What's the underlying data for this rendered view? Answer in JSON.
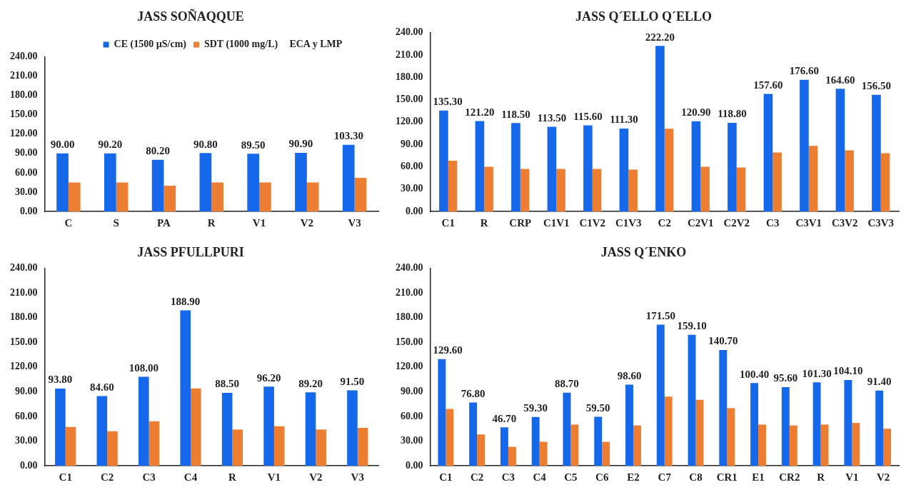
{
  "chart_data": [
    {
      "type": "bar",
      "title": "JASS SOÑAQQUE",
      "categories": [
        "C",
        "S",
        "PA",
        "R",
        "V1",
        "V2",
        "V3"
      ],
      "series": [
        {
          "name": "CE (1500 µS/cm)",
          "color": "#1668ea",
          "values": [
            90.0,
            90.2,
            80.2,
            90.8,
            89.5,
            90.9,
            103.3
          ],
          "value_labels": [
            "90.00",
            "90.20",
            "80.20",
            "90.80",
            "89.50",
            "90.90",
            "103.30"
          ]
        },
        {
          "name": "SDT (1000 mg/L)",
          "color": "#ed7d31",
          "values": [
            45,
            45,
            40,
            45,
            45,
            45,
            52
          ]
        }
      ],
      "annotations": [
        "ECA y LMP"
      ],
      "legend": "top",
      "grid": false,
      "ylim": [
        0,
        240
      ],
      "yticks": [
        {
          "value": 0,
          "label": "0.00"
        },
        {
          "value": 30,
          "label": "30.00"
        },
        {
          "value": 60,
          "label": "60.00"
        },
        {
          "value": 90,
          "label": "90.00"
        },
        {
          "value": 120,
          "label": "120.00"
        },
        {
          "value": 150,
          "label": "150.00"
        },
        {
          "value": 180,
          "label": "180.00"
        },
        {
          "value": 210,
          "label": "210.00"
        },
        {
          "value": 240,
          "label": "240.00"
        }
      ]
    },
    {
      "type": "bar",
      "title": "JASS Q´ELLO Q´ELLO",
      "categories": [
        "C1",
        "R",
        "CRP",
        "C1V1",
        "C1V2",
        "C1V3",
        "C2",
        "C2V1",
        "C2V2",
        "C3",
        "C3V1",
        "C3V2",
        "C3V3"
      ],
      "series": [
        {
          "color": "#1668ea",
          "values": [
            135.3,
            121.2,
            118.5,
            113.5,
            115.6,
            111.3,
            222.2,
            120.9,
            118.8,
            157.6,
            176.6,
            164.6,
            156.5
          ],
          "value_labels": [
            "135.30",
            "121.20",
            "118.50",
            "113.50",
            "115.60",
            "111.30",
            "222.20",
            "120.90",
            "118.80",
            "157.60",
            "176.60",
            "164.60",
            "156.50"
          ]
        },
        {
          "color": "#ed7d31",
          "values": [
            68,
            60,
            57,
            57,
            57,
            56,
            111,
            60,
            59,
            79,
            88,
            82,
            78
          ]
        }
      ],
      "grid": false,
      "ylim": [
        0,
        240
      ],
      "yticks": [
        {
          "value": 0,
          "label": "0.00"
        },
        {
          "value": 30,
          "label": "30.00"
        },
        {
          "value": 60,
          "label": "60.00"
        },
        {
          "value": 90,
          "label": "90.00"
        },
        {
          "value": 120,
          "label": "120.00"
        },
        {
          "value": 150,
          "label": "150.00"
        },
        {
          "value": 180,
          "label": "180.00"
        },
        {
          "value": 210,
          "label": "210.00"
        },
        {
          "value": 240,
          "label": "240.00"
        }
      ]
    },
    {
      "type": "bar",
      "title": "JASS PFULLPURI",
      "categories": [
        "C1",
        "C2",
        "C3",
        "C4",
        "R",
        "V1",
        "V2",
        "V3"
      ],
      "series": [
        {
          "color": "#1668ea",
          "values": [
            93.8,
            84.6,
            108.0,
            188.9,
            88.5,
            96.2,
            89.2,
            91.5
          ],
          "value_labels": [
            "93.80",
            "84.60",
            "108.00",
            "188.90",
            "88.50",
            "96.20",
            "89.20",
            "91.50"
          ]
        },
        {
          "color": "#ed7d31",
          "values": [
            47,
            42,
            54,
            94,
            44,
            48,
            44,
            46
          ]
        }
      ],
      "grid": false,
      "ylim": [
        0,
        240
      ],
      "yticks": [
        {
          "value": 0,
          "label": "0.00"
        },
        {
          "value": 30,
          "label": "30.00"
        },
        {
          "value": 60,
          "label": "60.00"
        },
        {
          "value": 90,
          "label": "90.00"
        },
        {
          "value": 120,
          "label": "120.00"
        },
        {
          "value": 150,
          "label": "150.00"
        },
        {
          "value": 180,
          "label": "180.00"
        },
        {
          "value": 210,
          "label": "210.00"
        },
        {
          "value": 240,
          "label": "240.00"
        }
      ]
    },
    {
      "type": "bar",
      "title": "JASS Q´ENKO",
      "categories": [
        "C1",
        "C2",
        "C3",
        "C4",
        "C5",
        "C6",
        "E2",
        "C7",
        "C8",
        "CR1",
        "E1",
        "CR2",
        "R",
        "V1",
        "V2"
      ],
      "series": [
        {
          "color": "#1668ea",
          "values": [
            129.6,
            76.8,
            46.7,
            59.3,
            88.7,
            59.5,
            98.6,
            171.5,
            159.1,
            140.7,
            100.4,
            95.6,
            101.3,
            104.1,
            91.4
          ],
          "value_labels": [
            "129.60",
            "76.80",
            "46.70",
            "59.30",
            "88.70",
            "59.50",
            "98.60",
            "171.50",
            "159.10",
            "140.70",
            "100.40",
            "95.60",
            "101.30",
            "104.10",
            "91.40"
          ]
        },
        {
          "color": "#ed7d31",
          "values": [
            69,
            38,
            23,
            29,
            50,
            29,
            49,
            84,
            80,
            70,
            50,
            49,
            50,
            52,
            45
          ]
        }
      ],
      "grid": false,
      "ylim": [
        0,
        240
      ],
      "yticks": [
        {
          "value": 0,
          "label": "0.00"
        },
        {
          "value": 30,
          "label": "30.00"
        },
        {
          "value": 60,
          "label": "60.00"
        },
        {
          "value": 90,
          "label": "90.00"
        },
        {
          "value": 120,
          "label": "120.00"
        },
        {
          "value": 150,
          "label": "150.00"
        },
        {
          "value": 180,
          "label": "180.00"
        },
        {
          "value": 210,
          "label": "210.00"
        },
        {
          "value": 240,
          "label": "240.00"
        }
      ]
    }
  ]
}
